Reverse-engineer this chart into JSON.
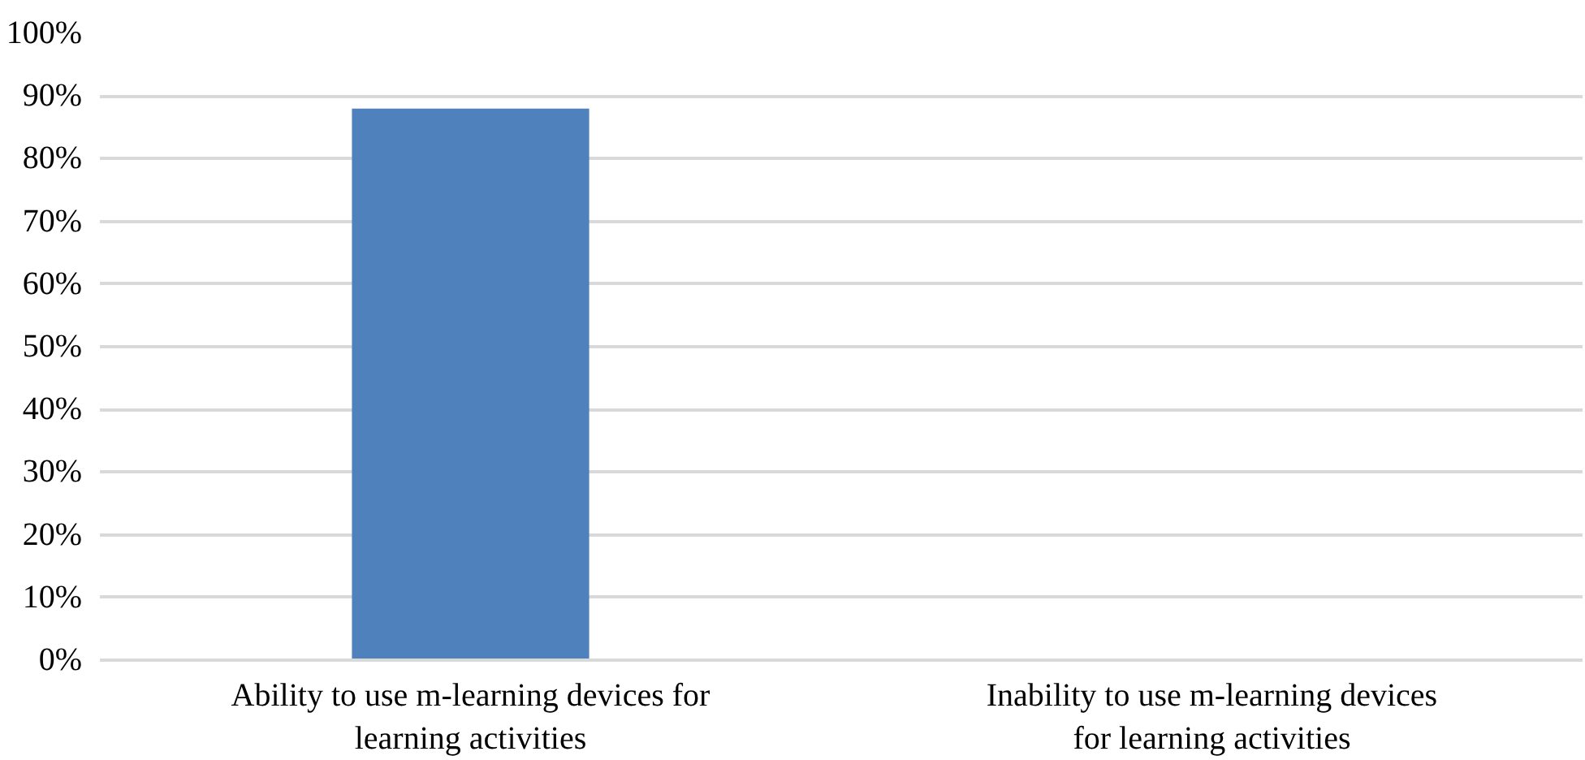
{
  "chart_data": {
    "type": "bar",
    "categories": [
      "Ability to use m-learning devices for learning activities",
      "Inability to use m-learning devices for learning activities"
    ],
    "values": [
      88,
      0
    ],
    "color": "#4f81bd",
    "ylim": [
      0,
      100
    ],
    "yticks": [
      {
        "value": 0,
        "label": "0%"
      },
      {
        "value": 10,
        "label": "10%"
      },
      {
        "value": 20,
        "label": "20%"
      },
      {
        "value": 30,
        "label": "30%"
      },
      {
        "value": 40,
        "label": "40%"
      },
      {
        "value": 50,
        "label": "50%"
      },
      {
        "value": 60,
        "label": "60%"
      },
      {
        "value": 70,
        "label": "70%"
      },
      {
        "value": 80,
        "label": "80%"
      },
      {
        "value": 90,
        "label": "90%"
      },
      {
        "value": 100,
        "label": "100%"
      }
    ],
    "grid": "y"
  }
}
